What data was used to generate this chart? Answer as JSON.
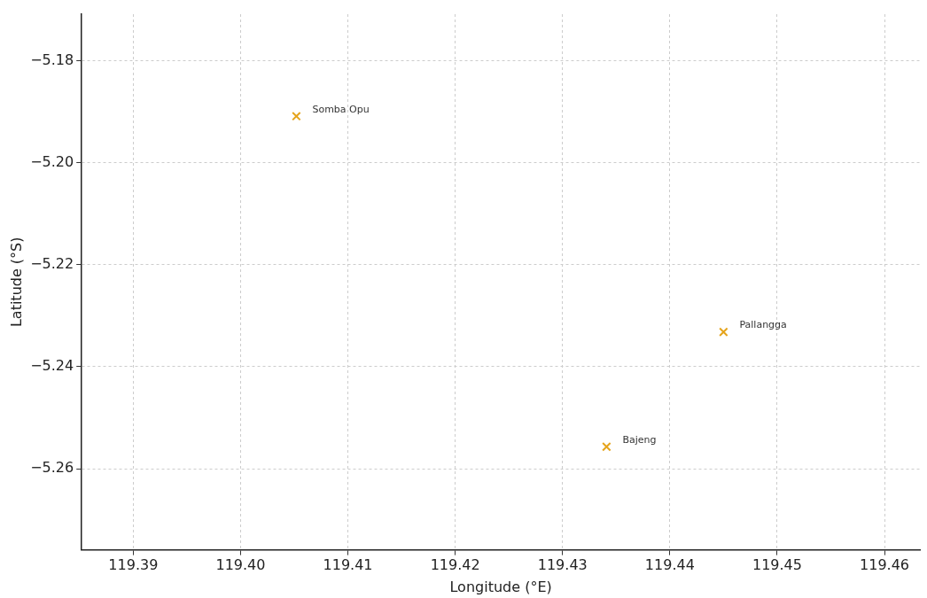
{
  "chart_data": {
    "type": "scatter",
    "xlabel": "Longitude (°E)",
    "ylabel": "Latitude (°S)",
    "x": [
      119.4052,
      119.445,
      119.4341
    ],
    "values": [
      -5.1909,
      -5.2332,
      -5.2557
    ],
    "color": "#e5a41c",
    "marker": "cross",
    "annotations": [
      {
        "text": "Somba Opu",
        "x": 119.4052,
        "y": -5.1909
      },
      {
        "text": "Pallangga",
        "x": 119.445,
        "y": -5.2332
      },
      {
        "text": "Bajeng",
        "x": 119.4341,
        "y": -5.2557
      }
    ],
    "xlim": [
      119.3852,
      119.4633
    ],
    "xticks": [
      119.39,
      {
        "value": 119.4,
        "label": "119.40"
      },
      119.41,
      119.42,
      119.43,
      119.44,
      119.45,
      119.46
    ],
    "ylim": [
      -5.2759,
      -5.1709
    ],
    "yticks": [
      {
        "value": -5.18,
        "label": "−5.18"
      },
      {
        "value": -5.2,
        "label": "−5.20"
      },
      {
        "value": -5.22,
        "label": "−5.22"
      },
      {
        "value": -5.24,
        "label": "−5.24"
      },
      {
        "value": -5.26,
        "label": "−5.26"
      }
    ],
    "grid": true
  }
}
